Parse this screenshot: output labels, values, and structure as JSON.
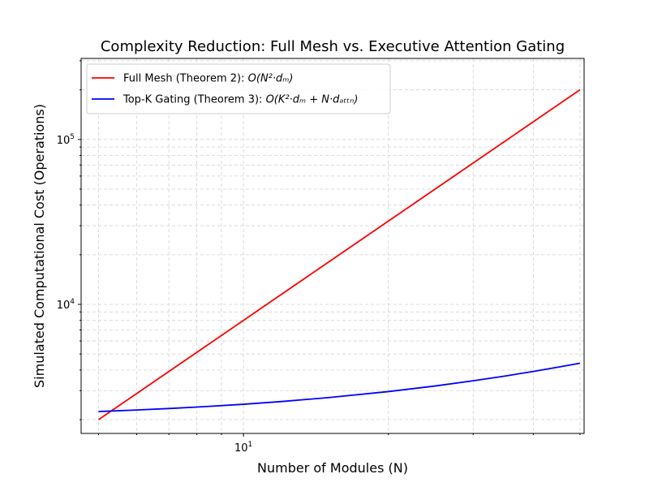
{
  "chart_data": {
    "type": "line",
    "title": "Complexity Reduction: Full Mesh vs. Executive Attention Gating",
    "xlabel": "Number of Modules (N)",
    "ylabel": "Simulated Computational Cost (Operations)",
    "x_scale": "log",
    "y_scale": "log",
    "xlim": [
      4.6,
      51
    ],
    "ylim": [
      1650,
      310000
    ],
    "grid": true,
    "legend_position": "upper-left",
    "x_ticks": [
      {
        "value": 10,
        "base": "10",
        "exp": "1"
      }
    ],
    "y_ticks": [
      {
        "value": 10000,
        "base": "10",
        "exp": "4"
      },
      {
        "value": 100000,
        "base": "10",
        "exp": "5"
      }
    ],
    "x": [
      5,
      6,
      7,
      8,
      10,
      12,
      15,
      20,
      25,
      30,
      35,
      40,
      45,
      50
    ],
    "series": [
      {
        "name": "Full Mesh (Theorem 2): O(N²·dₘ)",
        "legend_plain": "Full Mesh (Theorem 2): ",
        "legend_math": "O(N²·dₘ)",
        "color": "#ff0000",
        "values": [
          2000,
          2880,
          3920,
          5120,
          8000,
          11520,
          18000,
          32000,
          50000,
          72000,
          98000,
          128000,
          162000,
          200000
        ]
      },
      {
        "name": "Top-K Gating (Theorem 3): O(K²·dₘ + N·dₐₜₜₙ)",
        "legend_plain": "Top-K Gating (Theorem 3): ",
        "legend_math": "O(K²·dₘ + N·dₐₜₜₙ)",
        "color": "#0000ff",
        "values": [
          2240,
          2288,
          2336,
          2384,
          2480,
          2576,
          2720,
          2960,
          3200,
          3440,
          3680,
          3920,
          4160,
          4400
        ]
      }
    ]
  }
}
